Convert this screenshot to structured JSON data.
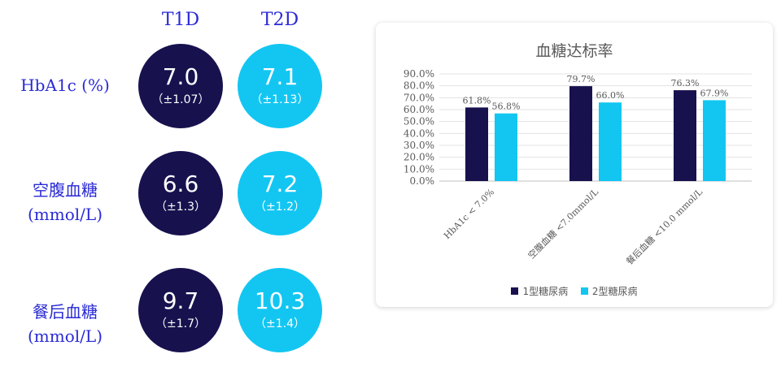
{
  "table": {
    "columns": [
      "T1D",
      "T2D"
    ],
    "rows": [
      {
        "label_lines": [
          "HbA1c (%)"
        ],
        "t1d": {
          "value": "7.0",
          "sd": "（±1.07）"
        },
        "t2d": {
          "value": "7.1",
          "sd": "（±1.13）"
        }
      },
      {
        "label_lines": [
          "空腹血糖",
          "(mmol/L)"
        ],
        "t1d": {
          "value": "6.6",
          "sd": "（±1.3）"
        },
        "t2d": {
          "value": "7.2",
          "sd": "（±1.2）"
        }
      },
      {
        "label_lines": [
          "餐后血糖",
          "(mmol/L)"
        ],
        "t1d": {
          "value": "9.7",
          "sd": "（±1.7）"
        },
        "t2d": {
          "value": "10.3",
          "sd": "（±1.4）"
        }
      }
    ]
  },
  "colors": {
    "t1": "#17124e",
    "t2": "#13c6f2",
    "label": "#2a2ad6"
  },
  "chart_data": {
    "type": "bar",
    "title": "血糖达标率",
    "categories": [
      "HbA1c < 7.0%",
      "空腹血糖 <7.0mmol/L",
      "餐后血糖 <10.0 mmol/L"
    ],
    "series": [
      {
        "name": "1型糖尿病",
        "values": [
          61.8,
          79.7,
          76.3
        ],
        "labels": [
          "61.8%",
          "79.7%",
          "76.3%"
        ],
        "color": "#17124e"
      },
      {
        "name": "2型糖尿病",
        "values": [
          56.8,
          66.0,
          67.9
        ],
        "labels": [
          "56.8%",
          "66.0%",
          "67.9%"
        ],
        "color": "#13c6f2"
      }
    ],
    "yticks": [
      "0.0%",
      "10.0%",
      "20.0%",
      "30.0%",
      "40.0%",
      "50.0%",
      "60.0%",
      "70.0%",
      "80.0%",
      "90.0%"
    ],
    "ylim": [
      0,
      90
    ],
    "grid": true,
    "legend_position": "bottom"
  }
}
